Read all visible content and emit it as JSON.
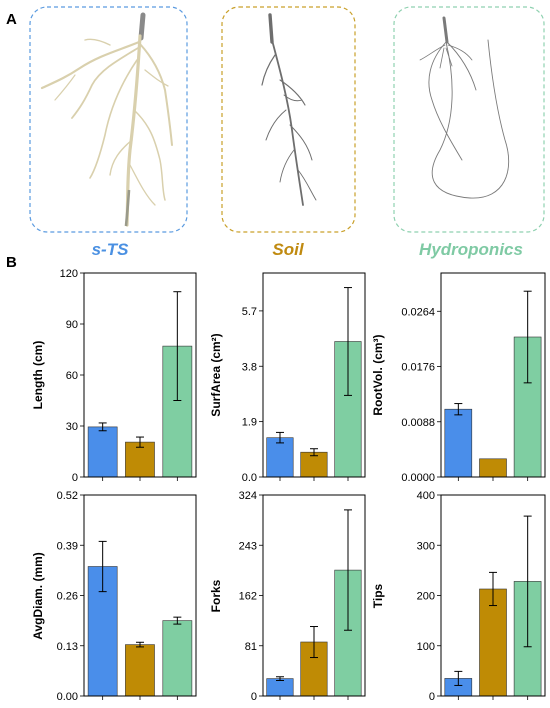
{
  "panel_labels": {
    "a": "A",
    "b": "B"
  },
  "conditions": [
    {
      "name": "s-TS",
      "color": "#4a90e2",
      "frame_color": "#5b9be0"
    },
    {
      "name": "Soil",
      "color": "#c08a10",
      "frame_color": "#c9a02a"
    },
    {
      "name": "Hydroponics",
      "color": "#7fcaa4",
      "frame_color": "#8fd1b0"
    }
  ],
  "bar_colors": [
    "#4a8eea",
    "#bf8b05",
    "#7fcea2"
  ],
  "chart_data": [
    {
      "type": "bar",
      "ylabel": "Length (cm)",
      "ylim": [
        0,
        120
      ],
      "yticks": [
        "0",
        "30",
        "60",
        "90",
        "120"
      ],
      "tickvals": [
        0,
        30,
        60,
        90,
        120
      ],
      "categories": [
        "s-TS",
        "Soil",
        "Hydroponics"
      ],
      "values": [
        29.5,
        20.5,
        77
      ],
      "errors": [
        2.3,
        3,
        32
      ]
    },
    {
      "type": "bar",
      "ylabel": "SurfArea (cm²)",
      "ylim": [
        0,
        7.0
      ],
      "yticks": [
        "0.0",
        "1.9",
        "3.8",
        "5.7"
      ],
      "tickvals": [
        0,
        1.9,
        3.8,
        5.7
      ],
      "categories": [
        "s-TS",
        "Soil",
        "Hydroponics"
      ],
      "values": [
        1.35,
        0.85,
        4.65
      ],
      "errors": [
        0.18,
        0.12,
        1.85
      ]
    },
    {
      "type": "bar",
      "ylabel": "RootVol. (cm³)",
      "ylim": [
        0,
        0.0325
      ],
      "yticks": [
        "0.0000",
        "0.0088",
        "0.0176",
        "0.0264"
      ],
      "tickvals": [
        0,
        0.0088,
        0.0176,
        0.0264
      ],
      "categories": [
        "s-TS",
        "Soil",
        "Hydroponics"
      ],
      "values": [
        0.0108,
        0.0029,
        0.0223
      ],
      "errors": [
        0.0009,
        0,
        0.0073
      ]
    },
    {
      "type": "bar",
      "ylabel": "AvgDiam. (mm)",
      "ylim": [
        0,
        0.52
      ],
      "yticks": [
        "0.00",
        "0.13",
        "0.26",
        "0.39",
        "0.52"
      ],
      "tickvals": [
        0,
        0.13,
        0.26,
        0.39,
        0.52
      ],
      "categories": [
        "s-TS",
        "Soil",
        "Hydroponics"
      ],
      "values": [
        0.335,
        0.133,
        0.195
      ],
      "errors": [
        0.065,
        0.006,
        0.009
      ]
    },
    {
      "type": "bar",
      "ylabel": "Forks",
      "ylim": [
        0,
        324
      ],
      "yticks": [
        "0",
        "81",
        "162",
        "243",
        "324"
      ],
      "tickvals": [
        0,
        81,
        162,
        243,
        324
      ],
      "categories": [
        "s-TS",
        "Soil",
        "Hydroponics"
      ],
      "values": [
        28,
        87,
        203
      ],
      "errors": [
        3,
        25,
        97
      ]
    },
    {
      "type": "bar",
      "ylabel": "Tips",
      "ylim": [
        0,
        400
      ],
      "yticks": [
        "0",
        "100",
        "200",
        "300",
        "400"
      ],
      "tickvals": [
        0,
        100,
        200,
        300,
        400
      ],
      "categories": [
        "s-TS",
        "Soil",
        "Hydroponics"
      ],
      "values": [
        35,
        213,
        228
      ],
      "errors": [
        14,
        33,
        130
      ]
    }
  ]
}
